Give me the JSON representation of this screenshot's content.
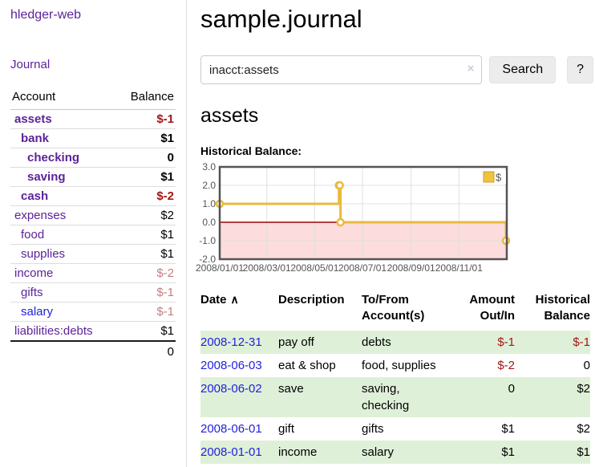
{
  "colors": {
    "link_purple": "#5c2399",
    "link_blue": "#2222dd",
    "negative_strong": "#a31515",
    "negative_soft": "#c47f7f",
    "row_green": "#dff0d8",
    "chart_gold": "#e9ba3d",
    "chart_negative_fill": "#fcdcdc",
    "chart_zero_line": "#a00000",
    "chart_border": "#545454",
    "grid_line": "#e0e0e0"
  },
  "sidebar": {
    "brand": "hledger-web",
    "nav_journal": "Journal",
    "accounts_header": {
      "account": "Account",
      "balance": "Balance"
    },
    "accounts": [
      {
        "name": "assets",
        "balance": "$-1",
        "indent": 0,
        "bold": true,
        "neg": "strong",
        "link_class": ""
      },
      {
        "name": "bank",
        "balance": "$1",
        "indent": 1,
        "bold": true,
        "neg": "none",
        "link_class": ""
      },
      {
        "name": "checking",
        "balance": "0",
        "indent": 2,
        "bold": true,
        "neg": "none",
        "link_class": ""
      },
      {
        "name": "saving",
        "balance": "$1",
        "indent": 2,
        "bold": true,
        "neg": "none",
        "link_class": ""
      },
      {
        "name": "cash",
        "balance": "$-2",
        "indent": 1,
        "bold": true,
        "neg": "strong",
        "link_class": ""
      },
      {
        "name": "expenses",
        "balance": "$2",
        "indent": 0,
        "bold": false,
        "neg": "none",
        "link_class": ""
      },
      {
        "name": "food",
        "balance": "$1",
        "indent": 1,
        "bold": false,
        "neg": "none",
        "link_class": ""
      },
      {
        "name": "supplies",
        "balance": "$1",
        "indent": 1,
        "bold": false,
        "neg": "none",
        "link_class": ""
      },
      {
        "name": "income",
        "balance": "$-2",
        "indent": 0,
        "bold": false,
        "neg": "soft",
        "link_class": ""
      },
      {
        "name": "gifts",
        "balance": "$-1",
        "indent": 1,
        "bold": false,
        "neg": "soft",
        "link_class": ""
      },
      {
        "name": "salary",
        "balance": "$-1",
        "indent": 1,
        "bold": false,
        "neg": "soft",
        "link_class": "blue"
      },
      {
        "name": "liabilities:debts",
        "balance": "$1",
        "indent": 0,
        "bold": false,
        "neg": "none",
        "link_class": ""
      }
    ],
    "total": "0"
  },
  "main": {
    "title": "sample.journal",
    "search": {
      "value": "inacct:assets",
      "clear_icon": "×",
      "search_button": "Search",
      "help_button": "?"
    },
    "account_heading": "assets",
    "chart_label": "Historical Balance:"
  },
  "chart_data": {
    "type": "line",
    "step": true,
    "title": "Historical Balance",
    "x_start": "2008/01/01",
    "x_end": "2009/01/01",
    "x_range_days": 366,
    "x_ticks": [
      "2008/01/01",
      "2008/03/01",
      "2008/05/01",
      "2008/07/01",
      "2008/09/01",
      "2008/11/01"
    ],
    "y_ticks": [
      "3.0",
      "2.0",
      "1.0",
      "0.0",
      "-1.0",
      "-2.0"
    ],
    "ylim": [
      -2,
      3
    ],
    "grid": true,
    "legend": {
      "label": "$",
      "position": "top-right"
    },
    "series": [
      {
        "name": "$",
        "points": [
          {
            "date": "2008/01/01",
            "value": 1
          },
          {
            "date": "2008/06/01",
            "value": 2
          },
          {
            "date": "2008/06/02",
            "value": 2
          },
          {
            "date": "2008/06/03",
            "value": 0
          },
          {
            "date": "2008/12/31",
            "value": -1
          }
        ]
      }
    ]
  },
  "register": {
    "headers": {
      "date": "Date",
      "sort_icon": "∧",
      "description": "Description",
      "accounts": "To/From Account(s)",
      "amount": "Amount Out/In",
      "balance": "Historical Balance"
    },
    "rows": [
      {
        "date": "2008-12-31",
        "description": "pay off",
        "accounts": "debts",
        "amount": "$-1",
        "amount_neg": true,
        "balance": "$-1",
        "balance_neg": true
      },
      {
        "date": "2008-06-03",
        "description": "eat & shop",
        "accounts": "food, supplies",
        "amount": "$-2",
        "amount_neg": true,
        "balance": "0",
        "balance_neg": false
      },
      {
        "date": "2008-06-02",
        "description": "save",
        "accounts": "saving, checking",
        "amount": "0",
        "amount_neg": false,
        "balance": "$2",
        "balance_neg": false
      },
      {
        "date": "2008-06-01",
        "description": "gift",
        "accounts": "gifts",
        "amount": "$1",
        "amount_neg": false,
        "balance": "$2",
        "balance_neg": false
      },
      {
        "date": "2008-01-01",
        "description": "income",
        "accounts": "salary",
        "amount": "$1",
        "amount_neg": false,
        "balance": "$1",
        "balance_neg": false
      }
    ]
  }
}
